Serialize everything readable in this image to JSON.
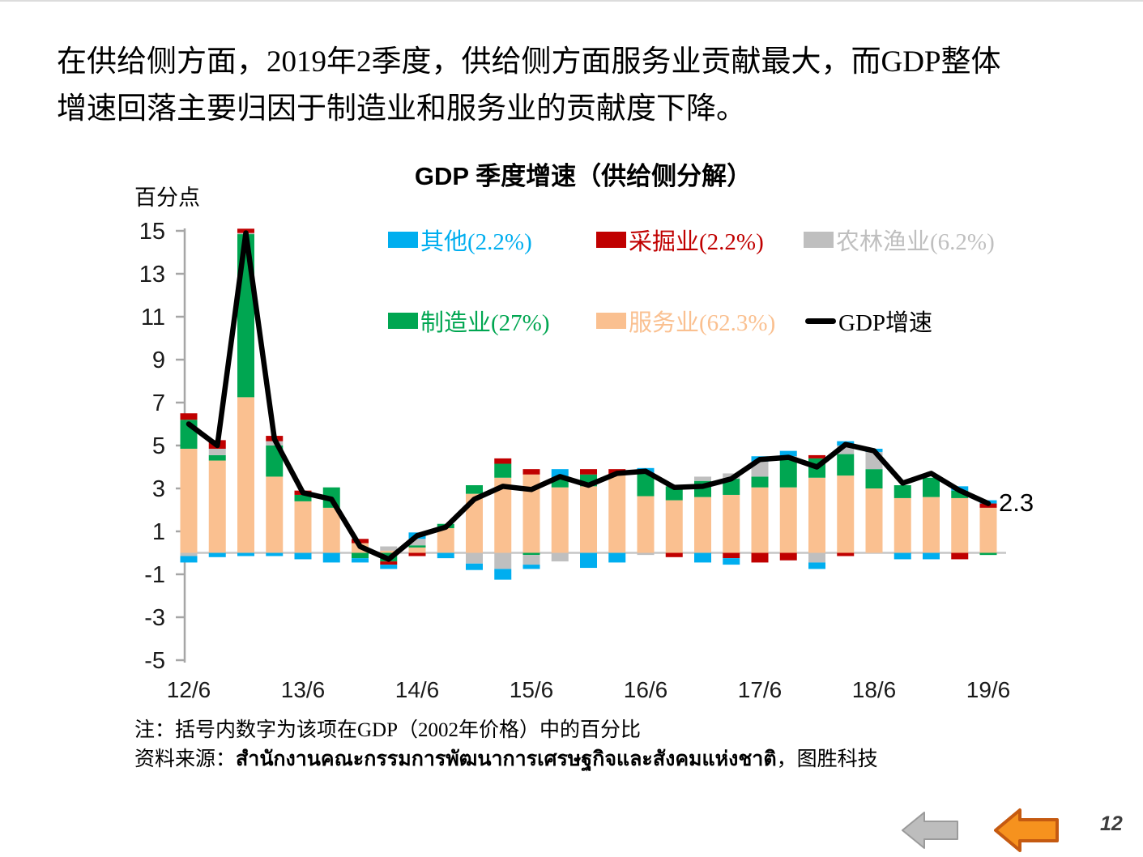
{
  "slide": {
    "headline_line1": "在供给侧方面，2019年2季度，供给侧方面服务业贡献最大，而GDP整体",
    "headline_line2": "增速回落主要归因于制造业和服务业的贡献度下降。",
    "page_number": "12"
  },
  "chart": {
    "title": "GDP 季度增速（供给侧分解）",
    "unit_label": "百分点",
    "annotation_value": "2.3",
    "legend": [
      {
        "label": "其他(2.2%)",
        "color": "#00AEEF",
        "type": "box"
      },
      {
        "label": "采掘业(2.2%)",
        "color": "#C00000",
        "type": "box"
      },
      {
        "label": "农林渔业(6.2%)",
        "color": "#BFBFBF",
        "type": "box"
      },
      {
        "label": "制造业(27%)",
        "color": "#00A651",
        "type": "box"
      },
      {
        "label": "服务业(62.3%)",
        "color": "#FAC090",
        "type": "box"
      },
      {
        "label": "GDP增速",
        "color": "#000000",
        "type": "line"
      }
    ]
  },
  "chart_data": {
    "type": "bar",
    "subtype": "stacked-bars-with-line",
    "title": "GDP 季度增速（供给侧分解）",
    "ylabel": "百分点",
    "ylim": [
      -5,
      15
    ],
    "yticks": [
      15,
      13,
      11,
      9,
      7,
      5,
      3,
      1,
      -1,
      -3,
      -5
    ],
    "x_tick_every": 4,
    "grid": "zero-line-only",
    "legend_position": "inside-top",
    "x": [
      "12/6",
      "12/9",
      "12/12",
      "13/3",
      "13/6",
      "13/9",
      "13/12",
      "14/3",
      "14/6",
      "14/9",
      "14/12",
      "15/3",
      "15/6",
      "15/9",
      "15/12",
      "16/3",
      "16/6",
      "16/9",
      "16/12",
      "17/3",
      "17/6",
      "17/9",
      "17/12",
      "18/3",
      "18/6",
      "18/9",
      "18/12",
      "19/3",
      "19/6"
    ],
    "series": [
      {
        "key": "services",
        "name": "服务业(62.3%)",
        "color": "#FAC090",
        "values": [
          4.85,
          4.3,
          7.25,
          3.55,
          2.4,
          2.1,
          0.45,
          0.1,
          0.25,
          1.15,
          2.75,
          3.5,
          3.65,
          3.05,
          3.1,
          3.62,
          2.64,
          2.45,
          2.6,
          2.7,
          3.05,
          3.05,
          3.5,
          3.6,
          3.0,
          2.55,
          2.6,
          2.55,
          2.1
        ]
      },
      {
        "key": "manufacturing",
        "name": "制造业(27%)",
        "color": "#00A651",
        "values": [
          1.35,
          0.25,
          7.6,
          1.45,
          0.3,
          0.95,
          -0.25,
          -0.4,
          0.1,
          0.2,
          0.4,
          0.65,
          -0.1,
          0.45,
          0.55,
          0.0,
          1.06,
          0.65,
          0.75,
          0.75,
          0.5,
          1.3,
          0.9,
          1.0,
          0.9,
          0.6,
          0.9,
          0.35,
          -0.1
        ]
      },
      {
        "key": "agriculture",
        "name": "农林渔业(6.2%)",
        "color": "#BFBFBF",
        "values": [
          -0.15,
          0.3,
          0.05,
          0.2,
          0.0,
          0.0,
          0.0,
          0.2,
          0.3,
          0.0,
          -0.5,
          -0.75,
          -0.45,
          -0.4,
          0.0,
          0.0,
          -0.1,
          0.0,
          0.2,
          0.25,
          0.7,
          0.15,
          -0.45,
          0.4,
          0.8,
          0.0,
          0.0,
          0.0,
          0.0
        ]
      },
      {
        "key": "mining",
        "name": "采掘业(2.2%)",
        "color": "#C00000",
        "values": [
          0.3,
          0.4,
          0.2,
          0.25,
          0.2,
          0.0,
          0.2,
          -0.15,
          -0.15,
          0.0,
          0.0,
          0.25,
          0.25,
          0.0,
          0.25,
          0.28,
          0.0,
          -0.2,
          0.0,
          -0.25,
          -0.45,
          -0.35,
          0.15,
          -0.15,
          0.0,
          0.0,
          0.0,
          -0.3,
          0.2
        ]
      },
      {
        "key": "other",
        "name": "其他(2.2%)",
        "color": "#00AEEF",
        "values": [
          -0.3,
          -0.2,
          -0.15,
          -0.15,
          -0.3,
          -0.45,
          -0.2,
          -0.2,
          0.3,
          -0.25,
          -0.3,
          -0.5,
          -0.2,
          0.4,
          -0.7,
          -0.45,
          0.25,
          0.0,
          -0.45,
          -0.3,
          0.25,
          0.25,
          -0.3,
          0.2,
          0.15,
          -0.3,
          -0.3,
          0.2,
          0.15
        ]
      }
    ],
    "line_series": {
      "name": "GDP增速",
      "color": "#000000",
      "values": [
        6.0,
        5.0,
        14.9,
        5.3,
        2.8,
        2.5,
        0.3,
        -0.3,
        0.8,
        1.2,
        2.5,
        3.1,
        2.95,
        3.55,
        3.15,
        3.7,
        3.8,
        3.05,
        3.1,
        3.45,
        4.35,
        4.45,
        4.0,
        5.05,
        4.75,
        3.25,
        3.7,
        2.9,
        2.3
      ]
    },
    "end_label": "2.3"
  },
  "notes": {
    "note1": "注：括号内数字为该项在GDP（2002年价格）中的百分比",
    "source_prefix": "资料来源：",
    "source_name": "สำนักงานคณะกรรมการพัฒนาการเศรษฐกิจและสังคมแห่งชาติ",
    "source_suffix": "，图胜科技"
  },
  "nav": {
    "back_gray_fill": "#BDBDBD",
    "back_gray_stroke": "#9B9B9B",
    "back_orange_fill": "#F6921E",
    "back_orange_stroke": "#C55A11"
  }
}
